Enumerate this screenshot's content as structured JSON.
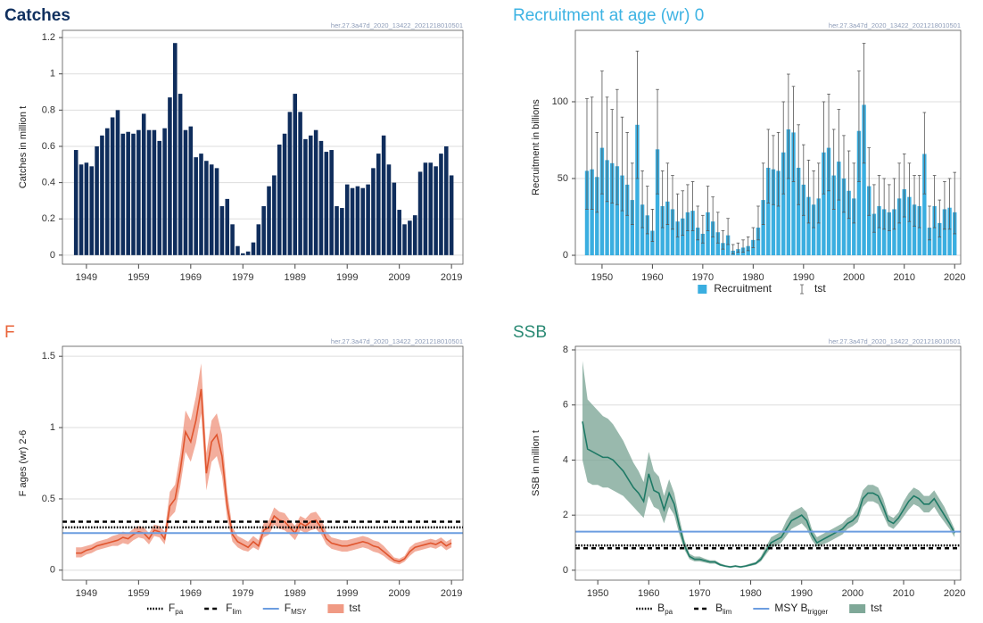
{
  "chart_data": [
    {
      "type": "bar",
      "title": "Catches",
      "title_color": "#10305f",
      "title_weight": "bold",
      "watermark": "her.27.3a47d_2020_13422_2021218010501",
      "y_label": "Catches in million t",
      "color": "#0f2d5c",
      "grid": true,
      "x": [
        1947,
        1948,
        1949,
        1950,
        1951,
        1952,
        1953,
        1954,
        1955,
        1956,
        1957,
        1958,
        1959,
        1960,
        1961,
        1962,
        1963,
        1964,
        1965,
        1966,
        1967,
        1968,
        1969,
        1970,
        1971,
        1972,
        1973,
        1974,
        1975,
        1976,
        1977,
        1978,
        1979,
        1980,
        1981,
        1982,
        1983,
        1984,
        1985,
        1986,
        1987,
        1988,
        1989,
        1990,
        1991,
        1992,
        1993,
        1994,
        1995,
        1996,
        1997,
        1998,
        1999,
        2000,
        2001,
        2002,
        2003,
        2004,
        2005,
        2006,
        2007,
        2008,
        2009,
        2010,
        2011,
        2012,
        2013,
        2014,
        2015,
        2016,
        2017,
        2018,
        2019
      ],
      "values": [
        0.58,
        0.5,
        0.51,
        0.49,
        0.6,
        0.66,
        0.7,
        0.76,
        0.8,
        0.67,
        0.68,
        0.67,
        0.69,
        0.78,
        0.69,
        0.69,
        0.63,
        0.7,
        0.87,
        1.17,
        0.89,
        0.69,
        0.71,
        0.54,
        0.56,
        0.52,
        0.5,
        0.48,
        0.27,
        0.31,
        0.17,
        0.05,
        0.01,
        0.02,
        0.07,
        0.17,
        0.27,
        0.38,
        0.44,
        0.61,
        0.67,
        0.79,
        0.89,
        0.79,
        0.64,
        0.66,
        0.69,
        0.63,
        0.57,
        0.58,
        0.27,
        0.26,
        0.39,
        0.37,
        0.38,
        0.37,
        0.39,
        0.48,
        0.56,
        0.66,
        0.5,
        0.4,
        0.25,
        0.17,
        0.19,
        0.22,
        0.46,
        0.51,
        0.51,
        0.49,
        0.56,
        0.6,
        0.44
      ],
      "xlim": [
        1944.4,
        2021.2
      ],
      "xticks": [
        1949,
        1959,
        1969,
        1979,
        1989,
        1999,
        2009,
        2019
      ],
      "ylim": [
        -0.05,
        1.24
      ],
      "yticks": [
        0,
        0.2,
        0.4,
        0.6,
        0.8,
        1,
        1.2
      ]
    },
    {
      "type": "bar",
      "title": "Recruitment at age (wr) 0",
      "title_color": "#3db3e3",
      "title_weight": "normal",
      "watermark": "her.27.3a47d_2020_13422_2021218010501",
      "y_label": "Recruitment in billions",
      "color": "#3aaee0",
      "error_color": "#555555",
      "grid": true,
      "series_name": "Recruitment",
      "error_name": "tst",
      "x": [
        1947,
        1948,
        1949,
        1950,
        1951,
        1952,
        1953,
        1954,
        1955,
        1956,
        1957,
        1958,
        1959,
        1960,
        1961,
        1962,
        1963,
        1964,
        1965,
        1966,
        1967,
        1968,
        1969,
        1970,
        1971,
        1972,
        1973,
        1974,
        1975,
        1976,
        1977,
        1978,
        1979,
        1980,
        1981,
        1982,
        1983,
        1984,
        1985,
        1986,
        1987,
        1988,
        1989,
        1990,
        1991,
        1992,
        1993,
        1994,
        1995,
        1996,
        1997,
        1998,
        1999,
        2000,
        2001,
        2002,
        2003,
        2004,
        2005,
        2006,
        2007,
        2008,
        2009,
        2010,
        2011,
        2012,
        2013,
        2014,
        2015,
        2016,
        2017,
        2018,
        2019,
        2020
      ],
      "values": [
        55,
        56,
        51,
        70,
        62,
        60,
        58,
        52,
        46,
        36,
        85,
        33,
        26,
        16,
        69,
        32,
        35,
        30,
        22,
        24,
        28,
        29,
        18,
        14,
        28,
        22,
        15,
        8,
        13,
        3,
        4,
        5,
        6,
        10,
        18,
        36,
        57,
        56,
        55,
        67,
        82,
        80,
        57,
        46,
        38,
        33,
        37,
        67,
        70,
        52,
        61,
        50,
        42,
        37,
        81,
        98,
        45,
        27,
        32,
        30,
        28,
        30,
        37,
        43,
        38,
        33,
        32,
        66,
        18,
        32,
        21,
        30,
        31,
        28
      ],
      "upper": [
        102,
        103,
        80,
        120,
        103,
        95,
        108,
        90,
        80,
        60,
        133,
        55,
        45,
        30,
        108,
        55,
        60,
        52,
        40,
        42,
        46,
        48,
        32,
        26,
        45,
        38,
        28,
        16,
        24,
        7,
        8,
        10,
        12,
        18,
        32,
        60,
        82,
        78,
        80,
        100,
        118,
        110,
        85,
        72,
        62,
        55,
        60,
        100,
        105,
        82,
        95,
        78,
        68,
        60,
        120,
        138,
        70,
        46,
        52,
        50,
        46,
        50,
        60,
        66,
        60,
        52,
        52,
        93,
        32,
        52,
        36,
        48,
        50,
        54
      ],
      "lower": [
        30,
        30,
        28,
        40,
        35,
        34,
        33,
        29,
        26,
        20,
        50,
        18,
        14,
        9,
        40,
        18,
        20,
        17,
        12,
        13,
        16,
        16,
        10,
        8,
        16,
        12,
        8,
        4,
        7,
        1,
        2,
        2,
        3,
        5,
        10,
        20,
        34,
        33,
        32,
        40,
        50,
        48,
        33,
        26,
        21,
        18,
        21,
        40,
        42,
        30,
        36,
        28,
        24,
        21,
        48,
        60,
        26,
        15,
        18,
        17,
        16,
        17,
        21,
        25,
        22,
        19,
        18,
        40,
        10,
        18,
        12,
        17,
        17,
        14
      ],
      "xlim": [
        1944.7,
        2021.2
      ],
      "xticks": [
        1950,
        1960,
        1970,
        1980,
        1990,
        2000,
        2010,
        2020
      ],
      "ylim": [
        -5.8,
        146.5
      ],
      "yticks": [
        0,
        50,
        100
      ]
    },
    {
      "type": "line",
      "title": "F",
      "title_color": "#e9643a",
      "title_weight": "normal",
      "watermark": "her.27.3a47d_2020_13422_2021218010501",
      "y_label": "F ages (wr) 2-6",
      "color": "#e0552e",
      "ribbon_color": "#f09a84",
      "grid": true,
      "series_name": "tst",
      "x": [
        1947,
        1948,
        1949,
        1950,
        1951,
        1952,
        1953,
        1954,
        1955,
        1956,
        1957,
        1958,
        1959,
        1960,
        1961,
        1962,
        1963,
        1964,
        1965,
        1966,
        1967,
        1968,
        1969,
        1970,
        1971,
        1972,
        1973,
        1974,
        1975,
        1976,
        1977,
        1978,
        1979,
        1980,
        1981,
        1982,
        1983,
        1984,
        1985,
        1986,
        1987,
        1988,
        1989,
        1990,
        1991,
        1992,
        1993,
        1994,
        1995,
        1996,
        1997,
        1998,
        1999,
        2000,
        2001,
        2002,
        2003,
        2004,
        2005,
        2006,
        2007,
        2008,
        2009,
        2010,
        2011,
        2012,
        2013,
        2014,
        2015,
        2016,
        2017,
        2018,
        2019
      ],
      "values": [
        0.12,
        0.12,
        0.14,
        0.15,
        0.17,
        0.18,
        0.19,
        0.2,
        0.21,
        0.23,
        0.22,
        0.25,
        0.27,
        0.26,
        0.22,
        0.28,
        0.27,
        0.22,
        0.45,
        0.5,
        0.7,
        0.97,
        0.9,
        1.05,
        1.27,
        0.68,
        0.9,
        0.95,
        0.8,
        0.45,
        0.25,
        0.2,
        0.18,
        0.16,
        0.2,
        0.17,
        0.28,
        0.3,
        0.38,
        0.35,
        0.34,
        0.3,
        0.26,
        0.33,
        0.31,
        0.34,
        0.35,
        0.3,
        0.22,
        0.19,
        0.18,
        0.17,
        0.17,
        0.18,
        0.19,
        0.2,
        0.19,
        0.17,
        0.16,
        0.13,
        0.1,
        0.07,
        0.06,
        0.08,
        0.13,
        0.16,
        0.17,
        0.18,
        0.19,
        0.18,
        0.2,
        0.17,
        0.19
      ],
      "upper": [
        0.16,
        0.16,
        0.17,
        0.18,
        0.2,
        0.21,
        0.22,
        0.24,
        0.25,
        0.27,
        0.26,
        0.29,
        0.31,
        0.3,
        0.26,
        0.32,
        0.31,
        0.27,
        0.55,
        0.6,
        0.82,
        1.12,
        1.05,
        1.22,
        1.45,
        0.82,
        1.05,
        1.1,
        0.95,
        0.55,
        0.3,
        0.24,
        0.22,
        0.2,
        0.24,
        0.21,
        0.33,
        0.35,
        0.44,
        0.41,
        0.4,
        0.35,
        0.31,
        0.38,
        0.36,
        0.4,
        0.41,
        0.36,
        0.27,
        0.23,
        0.22,
        0.21,
        0.21,
        0.22,
        0.23,
        0.24,
        0.23,
        0.21,
        0.2,
        0.17,
        0.13,
        0.09,
        0.08,
        0.1,
        0.16,
        0.19,
        0.2,
        0.21,
        0.22,
        0.21,
        0.23,
        0.2,
        0.22
      ],
      "lower": [
        0.09,
        0.09,
        0.11,
        0.12,
        0.14,
        0.15,
        0.16,
        0.17,
        0.17,
        0.19,
        0.18,
        0.21,
        0.23,
        0.22,
        0.18,
        0.24,
        0.23,
        0.18,
        0.37,
        0.41,
        0.59,
        0.83,
        0.76,
        0.89,
        1.1,
        0.56,
        0.76,
        0.8,
        0.66,
        0.36,
        0.2,
        0.16,
        0.14,
        0.13,
        0.16,
        0.14,
        0.23,
        0.25,
        0.32,
        0.29,
        0.28,
        0.25,
        0.21,
        0.28,
        0.26,
        0.28,
        0.29,
        0.25,
        0.18,
        0.15,
        0.14,
        0.13,
        0.13,
        0.14,
        0.15,
        0.16,
        0.15,
        0.13,
        0.12,
        0.1,
        0.07,
        0.05,
        0.04,
        0.06,
        0.1,
        0.13,
        0.14,
        0.15,
        0.16,
        0.15,
        0.17,
        0.14,
        0.16
      ],
      "hlines": [
        {
          "name": "F",
          "sub": "pa",
          "value": 0.3,
          "style": "dotted",
          "color": "#000000"
        },
        {
          "name": "F",
          "sub": "lim",
          "value": 0.34,
          "style": "dashed",
          "color": "#000000"
        },
        {
          "name": "F",
          "sub": "MSY",
          "value": 0.26,
          "style": "solid",
          "color": "#6c9de0"
        }
      ],
      "xlim": [
        1944.4,
        2021.2
      ],
      "xticks": [
        1949,
        1959,
        1969,
        1979,
        1989,
        1999,
        2009,
        2019
      ],
      "ylim": [
        -0.07,
        1.57
      ],
      "yticks": [
        0,
        0.5,
        1,
        1.5
      ]
    },
    {
      "type": "line",
      "title": "SSB",
      "title_color": "#2b8a74",
      "title_weight": "normal",
      "watermark": "her.27.3a47d_2020_13422_2021218010501",
      "y_label": "SSB in million t",
      "color": "#1f7a66",
      "ribbon_color": "#7fa898",
      "grid": true,
      "series_name": "tst",
      "x": [
        1947,
        1948,
        1949,
        1950,
        1951,
        1952,
        1953,
        1954,
        1955,
        1956,
        1957,
        1958,
        1959,
        1960,
        1961,
        1962,
        1963,
        1964,
        1965,
        1966,
        1967,
        1968,
        1969,
        1970,
        1971,
        1972,
        1973,
        1974,
        1975,
        1976,
        1977,
        1978,
        1979,
        1980,
        1981,
        1982,
        1983,
        1984,
        1985,
        1986,
        1987,
        1988,
        1989,
        1990,
        1991,
        1992,
        1993,
        1994,
        1995,
        1996,
        1997,
        1998,
        1999,
        2000,
        2001,
        2002,
        2003,
        2004,
        2005,
        2006,
        2007,
        2008,
        2009,
        2010,
        2011,
        2012,
        2013,
        2014,
        2015,
        2016,
        2017,
        2018,
        2019,
        2020
      ],
      "values": [
        5.4,
        4.4,
        4.3,
        4.2,
        4.1,
        4.1,
        4.0,
        3.8,
        3.6,
        3.3,
        3.0,
        2.8,
        2.5,
        3.5,
        2.9,
        2.8,
        2.2,
        2.8,
        2.4,
        1.6,
        0.9,
        0.5,
        0.4,
        0.4,
        0.35,
        0.3,
        0.3,
        0.2,
        0.15,
        0.12,
        0.15,
        0.12,
        0.15,
        0.2,
        0.25,
        0.4,
        0.7,
        1.0,
        1.1,
        1.2,
        1.5,
        1.8,
        1.9,
        2.0,
        1.8,
        1.3,
        1.0,
        1.1,
        1.2,
        1.3,
        1.4,
        1.5,
        1.7,
        1.8,
        2.0,
        2.6,
        2.8,
        2.8,
        2.7,
        2.3,
        1.8,
        1.7,
        1.9,
        2.2,
        2.5,
        2.7,
        2.6,
        2.4,
        2.4,
        2.6,
        2.3,
        2.0,
        1.7,
        1.35
      ],
      "upper": [
        7.6,
        6.2,
        6.0,
        5.8,
        5.6,
        5.5,
        5.3,
        5.0,
        4.7,
        4.3,
        3.9,
        3.6,
        3.2,
        4.3,
        3.6,
        3.4,
        2.7,
        3.3,
        2.8,
        1.9,
        1.1,
        0.6,
        0.5,
        0.5,
        0.42,
        0.36,
        0.36,
        0.25,
        0.19,
        0.15,
        0.19,
        0.15,
        0.19,
        0.25,
        0.3,
        0.5,
        0.85,
        1.2,
        1.3,
        1.4,
        1.8,
        2.1,
        2.2,
        2.3,
        2.1,
        1.5,
        1.2,
        1.3,
        1.4,
        1.5,
        1.6,
        1.7,
        1.9,
        2.0,
        2.3,
        2.9,
        3.1,
        3.1,
        3.0,
        2.6,
        2.0,
        1.9,
        2.1,
        2.5,
        2.8,
        3.0,
        2.9,
        2.7,
        2.7,
        2.9,
        2.6,
        2.3,
        1.9,
        1.5
      ],
      "lower": [
        4.0,
        3.2,
        3.1,
        3.1,
        3.0,
        3.0,
        2.9,
        2.8,
        2.7,
        2.5,
        2.3,
        2.1,
        1.9,
        2.7,
        2.3,
        2.2,
        1.7,
        2.3,
        2.0,
        1.3,
        0.75,
        0.4,
        0.32,
        0.32,
        0.28,
        0.24,
        0.24,
        0.16,
        0.12,
        0.09,
        0.12,
        0.09,
        0.12,
        0.16,
        0.2,
        0.32,
        0.57,
        0.82,
        0.9,
        1.0,
        1.25,
        1.5,
        1.6,
        1.7,
        1.5,
        1.1,
        0.85,
        0.93,
        1.0,
        1.1,
        1.2,
        1.3,
        1.5,
        1.6,
        1.75,
        2.3,
        2.5,
        2.5,
        2.4,
        2.0,
        1.6,
        1.5,
        1.7,
        1.95,
        2.2,
        2.4,
        2.3,
        2.1,
        2.1,
        2.3,
        2.0,
        1.75,
        1.5,
        1.2
      ],
      "hlines": [
        {
          "name": "B",
          "sub": "pa",
          "value": 0.9,
          "style": "dotted",
          "color": "#000000"
        },
        {
          "name": "B",
          "sub": "lim",
          "value": 0.8,
          "style": "dashed",
          "color": "#000000"
        },
        {
          "name": "MSY B",
          "sub": "trigger",
          "value": 1.4,
          "style": "solid",
          "color": "#6c9de0"
        }
      ],
      "xlim": [
        1945.6,
        2021.2
      ],
      "xticks": [
        1950,
        1960,
        1970,
        1980,
        1990,
        2000,
        2010,
        2020
      ],
      "ylim": [
        -0.36,
        8.13
      ],
      "yticks": [
        0,
        2,
        4,
        6,
        8
      ]
    }
  ]
}
